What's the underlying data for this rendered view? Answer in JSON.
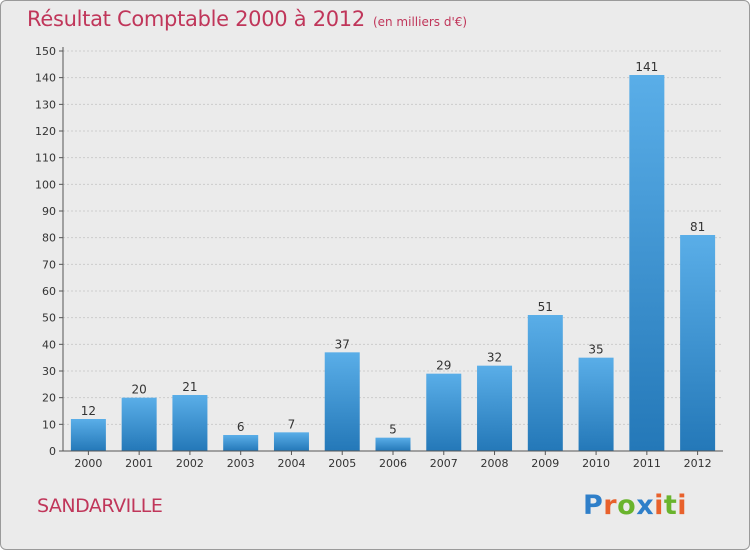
{
  "title": "Résultat Comptable 2000 à 2012",
  "subtitle": "(en milliers d'€)",
  "commune": "SANDARVILLE",
  "brand": {
    "text": "Proxiti",
    "letter_colors": [
      "#2f7fc9",
      "#e8612c",
      "#6ab42d",
      "#2f7fc9",
      "#e8612c",
      "#6ab42d",
      "#e8612c"
    ]
  },
  "colors": {
    "title": "#c0365a",
    "bar_top": "#5aaee8",
    "bar_bottom": "#2478b8",
    "grid": "#cccccc",
    "axis": "#555555",
    "plot_bg": "#ebebeb"
  },
  "chart_data": {
    "type": "bar",
    "title": "Résultat Comptable 2000 à 2012",
    "subtitle": "(en milliers d'€)",
    "categories": [
      "2000",
      "2001",
      "2002",
      "2003",
      "2004",
      "2005",
      "2006",
      "2007",
      "2008",
      "2009",
      "2010",
      "2011",
      "2012"
    ],
    "values": [
      12,
      20,
      21,
      6,
      7,
      37,
      5,
      29,
      32,
      51,
      35,
      141,
      81
    ],
    "ylim": [
      0,
      150
    ],
    "ytick_step": 10,
    "grid": true,
    "legend": "none"
  }
}
